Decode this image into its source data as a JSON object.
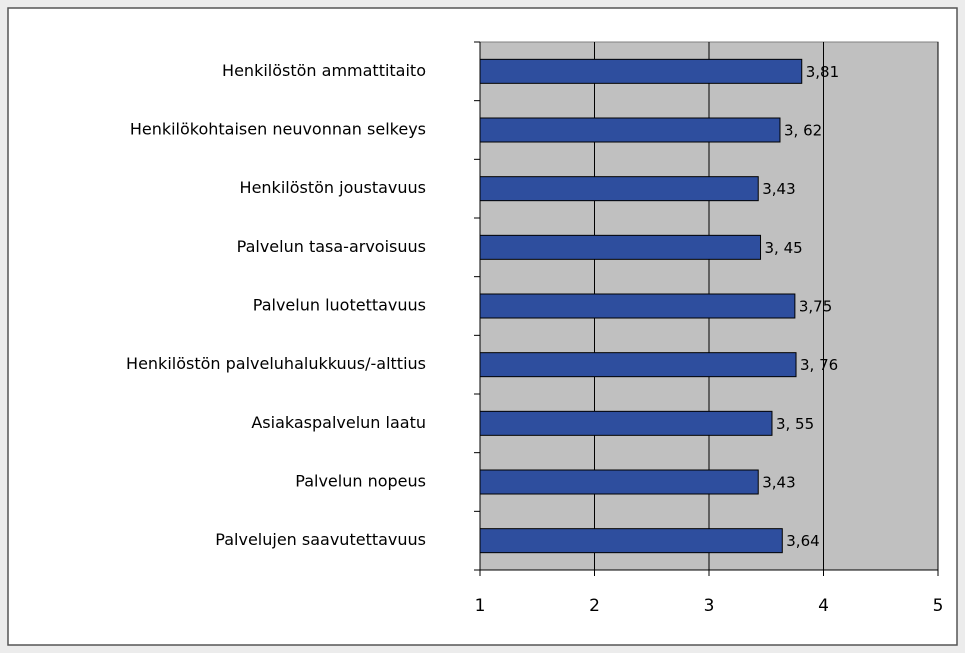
{
  "chart_data": {
    "type": "bar",
    "orientation": "horizontal",
    "categories": [
      "Henkilöstön ammattitaito",
      "Henkilökohtaisen neuvonnan selkeys",
      "Henkilöstön joustavuus",
      "Palvelun tasa-arvoisuus",
      "Palvelun luotettavuus",
      "Henkilöstön palveluhalukkuus/-alttius",
      "Asiakaspalvelun laatu",
      "Palvelun nopeus",
      "Palvelujen saavutettavuus"
    ],
    "values": [
      3.81,
      3.62,
      3.43,
      3.45,
      3.75,
      3.76,
      3.55,
      3.43,
      3.64
    ],
    "value_labels": [
      "3,81",
      "3, 62",
      "3,43",
      "3, 45",
      "3,75",
      "3, 76",
      "3, 55",
      "3,43",
      "3,64"
    ],
    "color": "#2e4e9e",
    "xlim": [
      1,
      5
    ],
    "xticks": [
      1,
      2,
      3,
      4,
      5
    ],
    "grid": true
  }
}
